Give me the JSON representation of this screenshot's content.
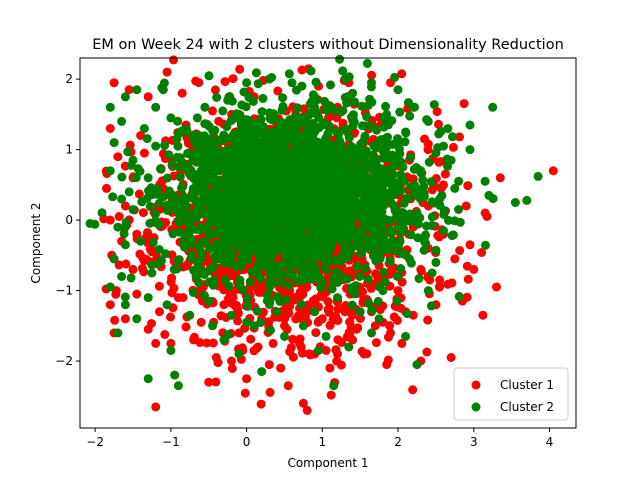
{
  "chart_data": {
    "type": "scatter",
    "title": "EM on Week 24 with 2 clusters without Dimensionality Reduction",
    "xlabel": "Component 1",
    "ylabel": "Component 2",
    "xlim": [
      -2.2,
      4.35
    ],
    "ylim": [
      -2.95,
      2.3
    ],
    "xticks": [
      -2,
      -1,
      0,
      1,
      2,
      3,
      4
    ],
    "yticks": [
      -2,
      -1,
      0,
      1,
      2
    ],
    "xtick_labels": [
      "−2",
      "−1",
      "0",
      "1",
      "2",
      "3",
      "4"
    ],
    "ytick_labels": [
      "−2",
      "−1",
      "0",
      "1",
      "2"
    ],
    "grid": false,
    "legend_position": "lower-right",
    "series": [
      {
        "name": "Cluster 1",
        "color": "#ff0000",
        "points": [
          [
            -1.75,
            1.95
          ],
          [
            -1.55,
            1.85
          ],
          [
            -1.3,
            1.75
          ],
          [
            -1.05,
            2.1
          ],
          [
            -0.85,
            1.8
          ],
          [
            -1.8,
            1.3
          ],
          [
            -1.7,
            0.9
          ],
          [
            -1.85,
            0.45
          ],
          [
            -1.8,
            0.0
          ],
          [
            -1.78,
            -0.5
          ],
          [
            -1.72,
            -1.0
          ],
          [
            -1.8,
            -1.2
          ],
          [
            -1.75,
            -1.6
          ],
          [
            -1.6,
            -1.4
          ],
          [
            -1.45,
            -1.05
          ],
          [
            -1.3,
            -1.55
          ],
          [
            -1.15,
            -1.3
          ],
          [
            -1.2,
            -1.75
          ],
          [
            -1.0,
            -1.75
          ],
          [
            -1.2,
            -2.65
          ],
          [
            -0.5,
            -2.3
          ],
          [
            -0.4,
            -1.95
          ],
          [
            -0.2,
            -2.0
          ],
          [
            0.0,
            -2.25
          ],
          [
            -0.05,
            -1.85
          ],
          [
            0.15,
            -1.8
          ],
          [
            0.35,
            -1.75
          ],
          [
            0.45,
            -2.1
          ],
          [
            0.55,
            -2.35
          ],
          [
            0.75,
            -2.6
          ],
          [
            0.8,
            -2.7
          ],
          [
            0.9,
            -1.9
          ],
          [
            1.05,
            -1.85
          ],
          [
            1.2,
            -1.9
          ],
          [
            1.4,
            -1.7
          ],
          [
            1.55,
            -1.9
          ],
          [
            1.7,
            -1.5
          ],
          [
            1.8,
            -1.45
          ],
          [
            1.9,
            -1.6
          ],
          [
            2.05,
            -1.75
          ],
          [
            1.85,
            -2.05
          ],
          [
            2.3,
            -2.0
          ],
          [
            2.2,
            -1.35
          ],
          [
            2.5,
            -1.2
          ],
          [
            2.7,
            -1.95
          ],
          [
            2.85,
            -1.15
          ],
          [
            3.3,
            -0.95
          ],
          [
            3.0,
            -0.7
          ],
          [
            2.75,
            -0.55
          ],
          [
            2.55,
            -0.85
          ],
          [
            2.4,
            -0.4
          ],
          [
            2.2,
            -0.1
          ],
          [
            2.4,
            0.2
          ],
          [
            2.6,
            0.5
          ],
          [
            2.9,
            0.2
          ],
          [
            3.15,
            0.1
          ],
          [
            3.35,
            0.6
          ],
          [
            4.05,
            0.7
          ],
          [
            2.95,
            -0.35
          ],
          [
            1.9,
            1.95
          ],
          [
            1.35,
            1.95
          ],
          [
            0.95,
            1.9
          ],
          [
            0.1,
            1.75
          ],
          [
            -0.45,
            1.55
          ],
          [
            -1.4,
            1.2
          ],
          [
            -1.5,
            0.6
          ],
          [
            -1.45,
            -0.2
          ],
          [
            -1.5,
            -0.7
          ],
          [
            -0.9,
            -1.1
          ],
          [
            -0.6,
            -1.45
          ],
          [
            -0.3,
            -1.2
          ],
          [
            0.2,
            -1.4
          ],
          [
            0.5,
            -1.5
          ],
          [
            0.7,
            -1.25
          ],
          [
            1.0,
            -1.4
          ],
          [
            1.3,
            -1.3
          ],
          [
            1.6,
            -1.15
          ],
          [
            2.0,
            -1.0
          ],
          [
            2.3,
            -0.7
          ],
          [
            -0.7,
            -1.7
          ],
          [
            0.3,
            -2.05
          ],
          [
            1.1,
            -2.1
          ],
          [
            1.65,
            -1.3
          ],
          [
            2.1,
            -1.3
          ],
          [
            -1.6,
            0.2
          ],
          [
            -1.65,
            -0.3
          ],
          [
            -1.35,
            0.95
          ],
          [
            -1.15,
            0.5
          ],
          [
            -1.25,
            -0.45
          ],
          [
            2.05,
            0.55
          ],
          [
            2.15,
            0.85
          ],
          [
            2.35,
            1.15
          ],
          [
            1.95,
            -0.3
          ],
          [
            0.65,
            1.55
          ],
          [
            -0.2,
            1.5
          ],
          [
            -0.8,
            1.35
          ],
          [
            1.2,
            1.6
          ],
          [
            -0.1,
            -1.6
          ],
          [
            1.45,
            -1.55
          ],
          [
            2.6,
            -0.2
          ]
        ]
      },
      {
        "name": "Cluster 2",
        "color": "#008000",
        "points": [
          [
            -1.8,
            1.6
          ],
          [
            -1.6,
            1.75
          ],
          [
            -1.45,
            1.85
          ],
          [
            -1.2,
            1.6
          ],
          [
            -1.0,
            1.45
          ],
          [
            -1.75,
            1.1
          ],
          [
            -1.8,
            0.7
          ],
          [
            -1.65,
            0.3
          ],
          [
            -1.7,
            -0.1
          ],
          [
            -1.75,
            -0.55
          ],
          [
            -1.65,
            -0.8
          ],
          [
            -1.8,
            -0.95
          ],
          [
            -1.6,
            -1.2
          ],
          [
            -1.45,
            -1.4
          ],
          [
            -1.7,
            -1.6
          ],
          [
            -1.3,
            -2.25
          ],
          [
            -1.0,
            -1.85
          ],
          [
            -0.9,
            -2.35
          ],
          [
            -0.95,
            -2.2
          ],
          [
            -0.45,
            -1.5
          ],
          [
            -0.1,
            -1.9
          ],
          [
            0.2,
            -2.15
          ],
          [
            0.5,
            -1.65
          ],
          [
            0.75,
            -1.5
          ],
          [
            0.95,
            -1.85
          ],
          [
            1.15,
            -2.35
          ],
          [
            1.35,
            -1.8
          ],
          [
            1.65,
            -1.6
          ],
          [
            2.1,
            -1.65
          ],
          [
            2.25,
            -2.05
          ],
          [
            2.15,
            -0.55
          ],
          [
            2.35,
            -0.3
          ],
          [
            2.25,
            0.1
          ],
          [
            2.55,
            0.3
          ],
          [
            2.8,
            0.55
          ],
          [
            2.7,
            0.85
          ],
          [
            2.95,
            1.0
          ],
          [
            3.15,
            0.55
          ],
          [
            3.2,
            0.35
          ],
          [
            3.55,
            0.25
          ],
          [
            3.7,
            0.28
          ],
          [
            3.85,
            0.62
          ],
          [
            3.25,
            1.6
          ],
          [
            2.95,
            1.35
          ],
          [
            2.6,
            1.05
          ],
          [
            2.4,
            1.4
          ],
          [
            2.2,
            1.6
          ],
          [
            2.0,
            1.85
          ],
          [
            1.65,
            1.95
          ],
          [
            1.3,
            2.0
          ],
          [
            0.6,
            1.95
          ],
          [
            0.3,
            2.0
          ],
          [
            0.0,
            1.95
          ],
          [
            -0.25,
            1.7
          ],
          [
            -0.55,
            1.6
          ],
          [
            -1.1,
            1.85
          ],
          [
            -1.35,
            1.3
          ],
          [
            -1.5,
            0.85
          ],
          [
            -1.55,
            0.4
          ],
          [
            -1.4,
            -0.3
          ],
          [
            -1.25,
            -0.75
          ],
          [
            -1.05,
            -1.2
          ],
          [
            -0.75,
            -1.35
          ],
          [
            -0.5,
            -1.15
          ],
          [
            -0.2,
            -1.35
          ],
          [
            0.1,
            -1.5
          ],
          [
            0.4,
            -1.3
          ],
          [
            0.9,
            -1.3
          ],
          [
            1.2,
            -1.1
          ],
          [
            1.5,
            -1.3
          ],
          [
            1.8,
            -1.0
          ],
          [
            2.0,
            -0.8
          ],
          [
            2.4,
            -1.0
          ],
          [
            2.5,
            -0.6
          ],
          [
            2.6,
            -0.15
          ],
          [
            2.8,
            0.15
          ],
          [
            1.75,
            -1.4
          ],
          [
            1.05,
            -1.65
          ],
          [
            -0.3,
            -1.7
          ],
          [
            -1.3,
            -1.1
          ],
          [
            -1.6,
            -0.35
          ],
          [
            -1.5,
            0.15
          ],
          [
            -1.3,
            0.6
          ],
          [
            -1.2,
            1.05
          ],
          [
            -0.85,
            1.25
          ],
          [
            2.1,
            1.25
          ],
          [
            2.3,
            0.7
          ],
          [
            2.5,
            0.95
          ],
          [
            2.75,
            0.45
          ],
          [
            1.85,
            1.5
          ],
          [
            0.9,
            1.75
          ],
          [
            -0.65,
            1.45
          ],
          [
            -1.65,
            1.4
          ],
          [
            2.45,
            -0.75
          ],
          [
            1.4,
            1.8
          ]
        ]
      }
    ]
  }
}
